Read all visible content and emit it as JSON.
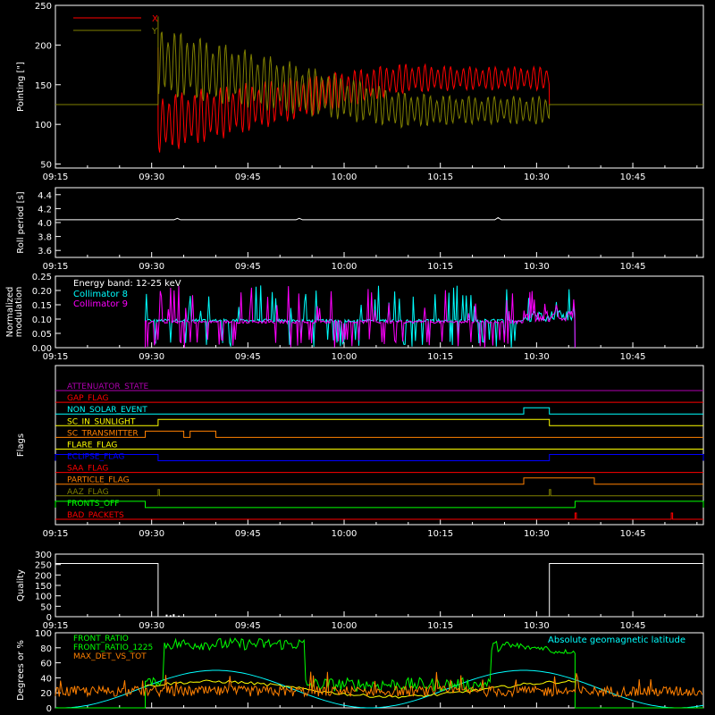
{
  "colors": {
    "background": "#000000",
    "axes": "#ffffff",
    "red": "#ff0000",
    "olive": "#808000",
    "cyan": "#00ffff",
    "magenta": "#ff00ff",
    "white": "#ffffff",
    "green": "#00ff00",
    "yellow": "#ffff00",
    "orange": "#ff8000",
    "blue": "#0000ff",
    "purple": "#b000b0"
  },
  "chart_data": [
    {
      "id": "pointing",
      "type": "line",
      "ylabel": "Pointing [\"]",
      "xlim": [
        "09:15",
        "10:56"
      ],
      "ylim": [
        45,
        250
      ],
      "yticks": [
        "50",
        "100",
        "150",
        "200",
        "250"
      ],
      "xticks": [
        "09:15",
        "09:30",
        "09:45",
        "10:00",
        "10:15",
        "10:30",
        "10:45"
      ],
      "legend": "top-left",
      "series": [
        {
          "name": "X",
          "color": "red",
          "before": 125,
          "after": 125,
          "start": "09:31",
          "end": "10:32",
          "center_start": 100,
          "center_end": 158,
          "amp_start": 38,
          "amp_end": 15,
          "spike": 197
        },
        {
          "name": "Y",
          "color": "olive",
          "before": 125,
          "after": 125,
          "start": "09:31",
          "end": "10:32",
          "center_start": 180,
          "center_end": 118,
          "amp_start": 45,
          "amp_end": 18,
          "spike": 236
        }
      ]
    },
    {
      "id": "roll",
      "type": "line",
      "ylabel": "Roll period [s]",
      "xlim": [
        "09:15",
        "10:56"
      ],
      "ylim": [
        3.5,
        4.5
      ],
      "yticks": [
        "3.6",
        "3.8",
        "4.0",
        "4.2",
        "4.4"
      ],
      "xticks": [
        "09:15",
        "09:30",
        "09:45",
        "10:00",
        "10:15",
        "10:30",
        "10:45"
      ],
      "series": [
        {
          "name": "",
          "color": "white",
          "value": 4.04,
          "blips": [
            {
              "t": "09:34",
              "v": 4.06
            },
            {
              "t": "09:53",
              "v": 4.06
            },
            {
              "t": "10:24",
              "v": 4.07
            }
          ]
        }
      ]
    },
    {
      "id": "modulation",
      "type": "line",
      "ylabel": "Normalized modulation",
      "xlim": [
        "09:15",
        "10:56"
      ],
      "ylim": [
        0.0,
        0.25
      ],
      "yticks": [
        "0.00",
        "0.05",
        "0.10",
        "0.15",
        "0.20",
        "0.25"
      ],
      "xticks": [
        "09:15",
        "09:30",
        "09:45",
        "10:00",
        "10:15",
        "10:30",
        "10:45"
      ],
      "annotation": "Energy band: 12-25 keV",
      "series": [
        {
          "name": "Collimator 8",
          "color": "cyan",
          "start": "09:29",
          "end": "10:36",
          "base": 0.095
        },
        {
          "name": "Collimator 9",
          "color": "magenta",
          "start": "09:29",
          "end": "10:36",
          "base": 0.09
        }
      ]
    },
    {
      "id": "flags",
      "type": "line",
      "ylabel": "Flags",
      "xlim": [
        "09:15",
        "10:56"
      ],
      "xticks": [
        "09:15",
        "09:30",
        "09:45",
        "10:00",
        "10:15",
        "10:30",
        "10:45"
      ],
      "series": [
        {
          "name": "ATTENUATOR_STATE",
          "color": "purple",
          "pulses": []
        },
        {
          "name": "GAP_FLAG",
          "color": "red",
          "pulses": []
        },
        {
          "name": "NON_SOLAR_EVENT",
          "color": "cyan",
          "pulses": [
            [
              "10:28",
              "10:32"
            ]
          ]
        },
        {
          "name": "SC_IN_SUNLIGHT",
          "color": "yellow",
          "pulses": [
            [
              "09:31",
              "10:32"
            ]
          ]
        },
        {
          "name": "SC_TRANSMITTER",
          "color": "orange",
          "pulses": [
            [
              "09:29",
              "09:35"
            ],
            [
              "09:36",
              "09:40"
            ]
          ]
        },
        {
          "name": "FLARE_FLAG",
          "color": "yellow",
          "pulses": []
        },
        {
          "name": "ECLIPSE_FLAG",
          "color": "blue",
          "pulses": [
            [
              "09:15",
              "09:31"
            ],
            [
              "10:32",
              "10:56"
            ]
          ]
        },
        {
          "name": "SAA_FLAG",
          "color": "red",
          "pulses": []
        },
        {
          "name": "PARTICLE_FLAG",
          "color": "orange",
          "pulses": [
            [
              "10:28",
              "10:39"
            ]
          ]
        },
        {
          "name": "AAZ_FLAG",
          "color": "olive",
          "pulses": [
            [
              "09:31",
              "09:31"
            ],
            [
              "10:32",
              "10:32"
            ]
          ]
        },
        {
          "name": "FRONTS_OFF",
          "color": "green",
          "pulses": [
            [
              "09:15",
              "09:29"
            ],
            [
              "10:36",
              "10:56"
            ]
          ]
        },
        {
          "name": "BAD_PACKETS",
          "color": "red",
          "pulses": [
            [
              "10:36",
              "10:36"
            ],
            [
              "10:51",
              "10:51"
            ]
          ]
        }
      ]
    },
    {
      "id": "quality",
      "type": "line",
      "ylabel": "Quality",
      "xlim": [
        "09:15",
        "10:56"
      ],
      "ylim": [
        0,
        300
      ],
      "yticks": [
        "0",
        "50",
        "100",
        "150",
        "200",
        "250",
        "300"
      ],
      "xticks": [
        "09:15",
        "09:30",
        "09:45",
        "10:00",
        "10:15",
        "10:30",
        "10:45"
      ],
      "series": [
        {
          "name": "",
          "color": "white",
          "high": 255,
          "low": 0,
          "segments": [
            [
              "09:15",
              "09:31",
              255
            ],
            [
              "09:31",
              "10:32",
              0
            ],
            [
              "10:32",
              "10:56",
              255
            ]
          ]
        }
      ]
    },
    {
      "id": "front_ratio",
      "type": "line",
      "ylabel": "Degrees or %",
      "xlim": [
        "09:15",
        "10:56"
      ],
      "ylim": [
        0,
        100
      ],
      "yticks": [
        "0",
        "20",
        "40",
        "60",
        "80",
        "100"
      ],
      "series": [
        {
          "name": "FRONT_RATIO",
          "color": "green"
        },
        {
          "name": "FRONT_RATIO_1225",
          "color": "yellow"
        },
        {
          "name": "MAX_DET_VS_TOT",
          "color": "orange"
        },
        {
          "name": "Absolute geomagnetic latitude",
          "color": "cyan",
          "mean": 25,
          "amplitude": 25,
          "period_min": 48
        }
      ]
    }
  ]
}
